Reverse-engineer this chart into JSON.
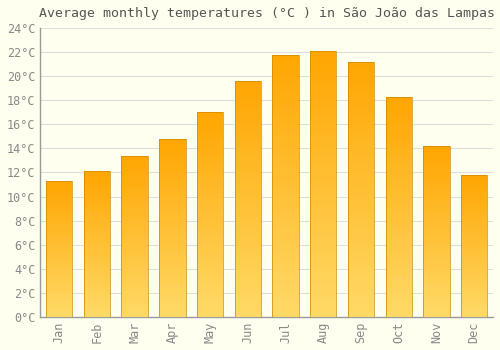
{
  "title": "Average monthly temperatures (°C ) in São João das Lampas",
  "months": [
    "Jan",
    "Feb",
    "Mar",
    "Apr",
    "May",
    "Jun",
    "Jul",
    "Aug",
    "Sep",
    "Oct",
    "Nov",
    "Dec"
  ],
  "values": [
    11.3,
    12.1,
    13.4,
    14.8,
    17.0,
    19.6,
    21.8,
    22.1,
    21.2,
    18.3,
    14.2,
    11.8
  ],
  "bar_color_top": "#FFA500",
  "bar_color_bottom": "#FFD966",
  "background_color": "#FFFFF0",
  "grid_color": "#DDDDDD",
  "spine_color": "#999999",
  "tick_color": "#888888",
  "title_color": "#555555",
  "ylim": [
    0,
    24
  ],
  "ytick_step": 2,
  "title_fontsize": 9.5,
  "tick_fontsize": 8.5
}
